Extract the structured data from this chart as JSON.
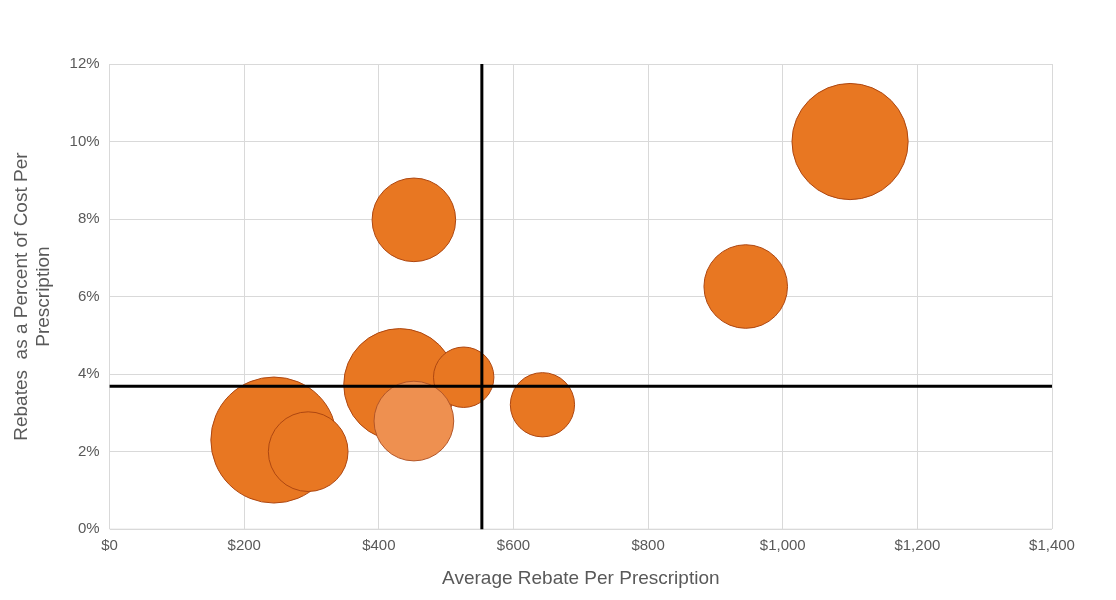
{
  "chart_data": {
    "type": "bubble",
    "xlabel": "Average Rebate Per Prescription",
    "ylabel": "Rebates  as a Percent of Cost Per Prescription",
    "x": [
      1100,
      945,
      452,
      244,
      431,
      526,
      452,
      643,
      295
    ],
    "values": [
      10.0,
      6.26,
      7.98,
      2.3,
      3.73,
      3.92,
      2.79,
      3.21,
      2.0
    ],
    "sizes": [
      0.85,
      0.44,
      0.44,
      1,
      0.79,
      0.23,
      0.4,
      0.26,
      0.4
    ],
    "colors": [
      "#e87722",
      "#e87722",
      "#e87722",
      "#e87722",
      "#e87722",
      "#e87722",
      "#ee9050",
      "#e87722",
      "#e87722"
    ],
    "xlim": [
      0,
      1400
    ],
    "xticks": [
      {
        "value": 0,
        "label": "$0"
      },
      {
        "value": 200,
        "label": "$200"
      },
      {
        "value": 400,
        "label": "$400"
      },
      {
        "value": 600,
        "label": "$600"
      },
      {
        "value": 800,
        "label": "$800"
      },
      {
        "value": 1000,
        "label": "$1,000"
      },
      {
        "value": 1200,
        "label": "$1,200"
      },
      {
        "value": 1400,
        "label": "$1,400"
      }
    ],
    "ylim": [
      0,
      12
    ],
    "yticks": [
      {
        "value": 0,
        "label": "0%"
      },
      {
        "value": 2,
        "label": "2%"
      },
      {
        "value": 4,
        "label": "4%"
      },
      {
        "value": 6,
        "label": "6%"
      },
      {
        "value": 8,
        "label": "8%"
      },
      {
        "value": 10,
        "label": "10%"
      },
      {
        "value": 12,
        "label": "12%"
      }
    ],
    "ref_lines": [
      {
        "axis": "x",
        "value": 553,
        "color": "#000000"
      },
      {
        "axis": "y",
        "value": 3.69,
        "color": "#000000"
      }
    ],
    "grid": true,
    "legend": false
  }
}
